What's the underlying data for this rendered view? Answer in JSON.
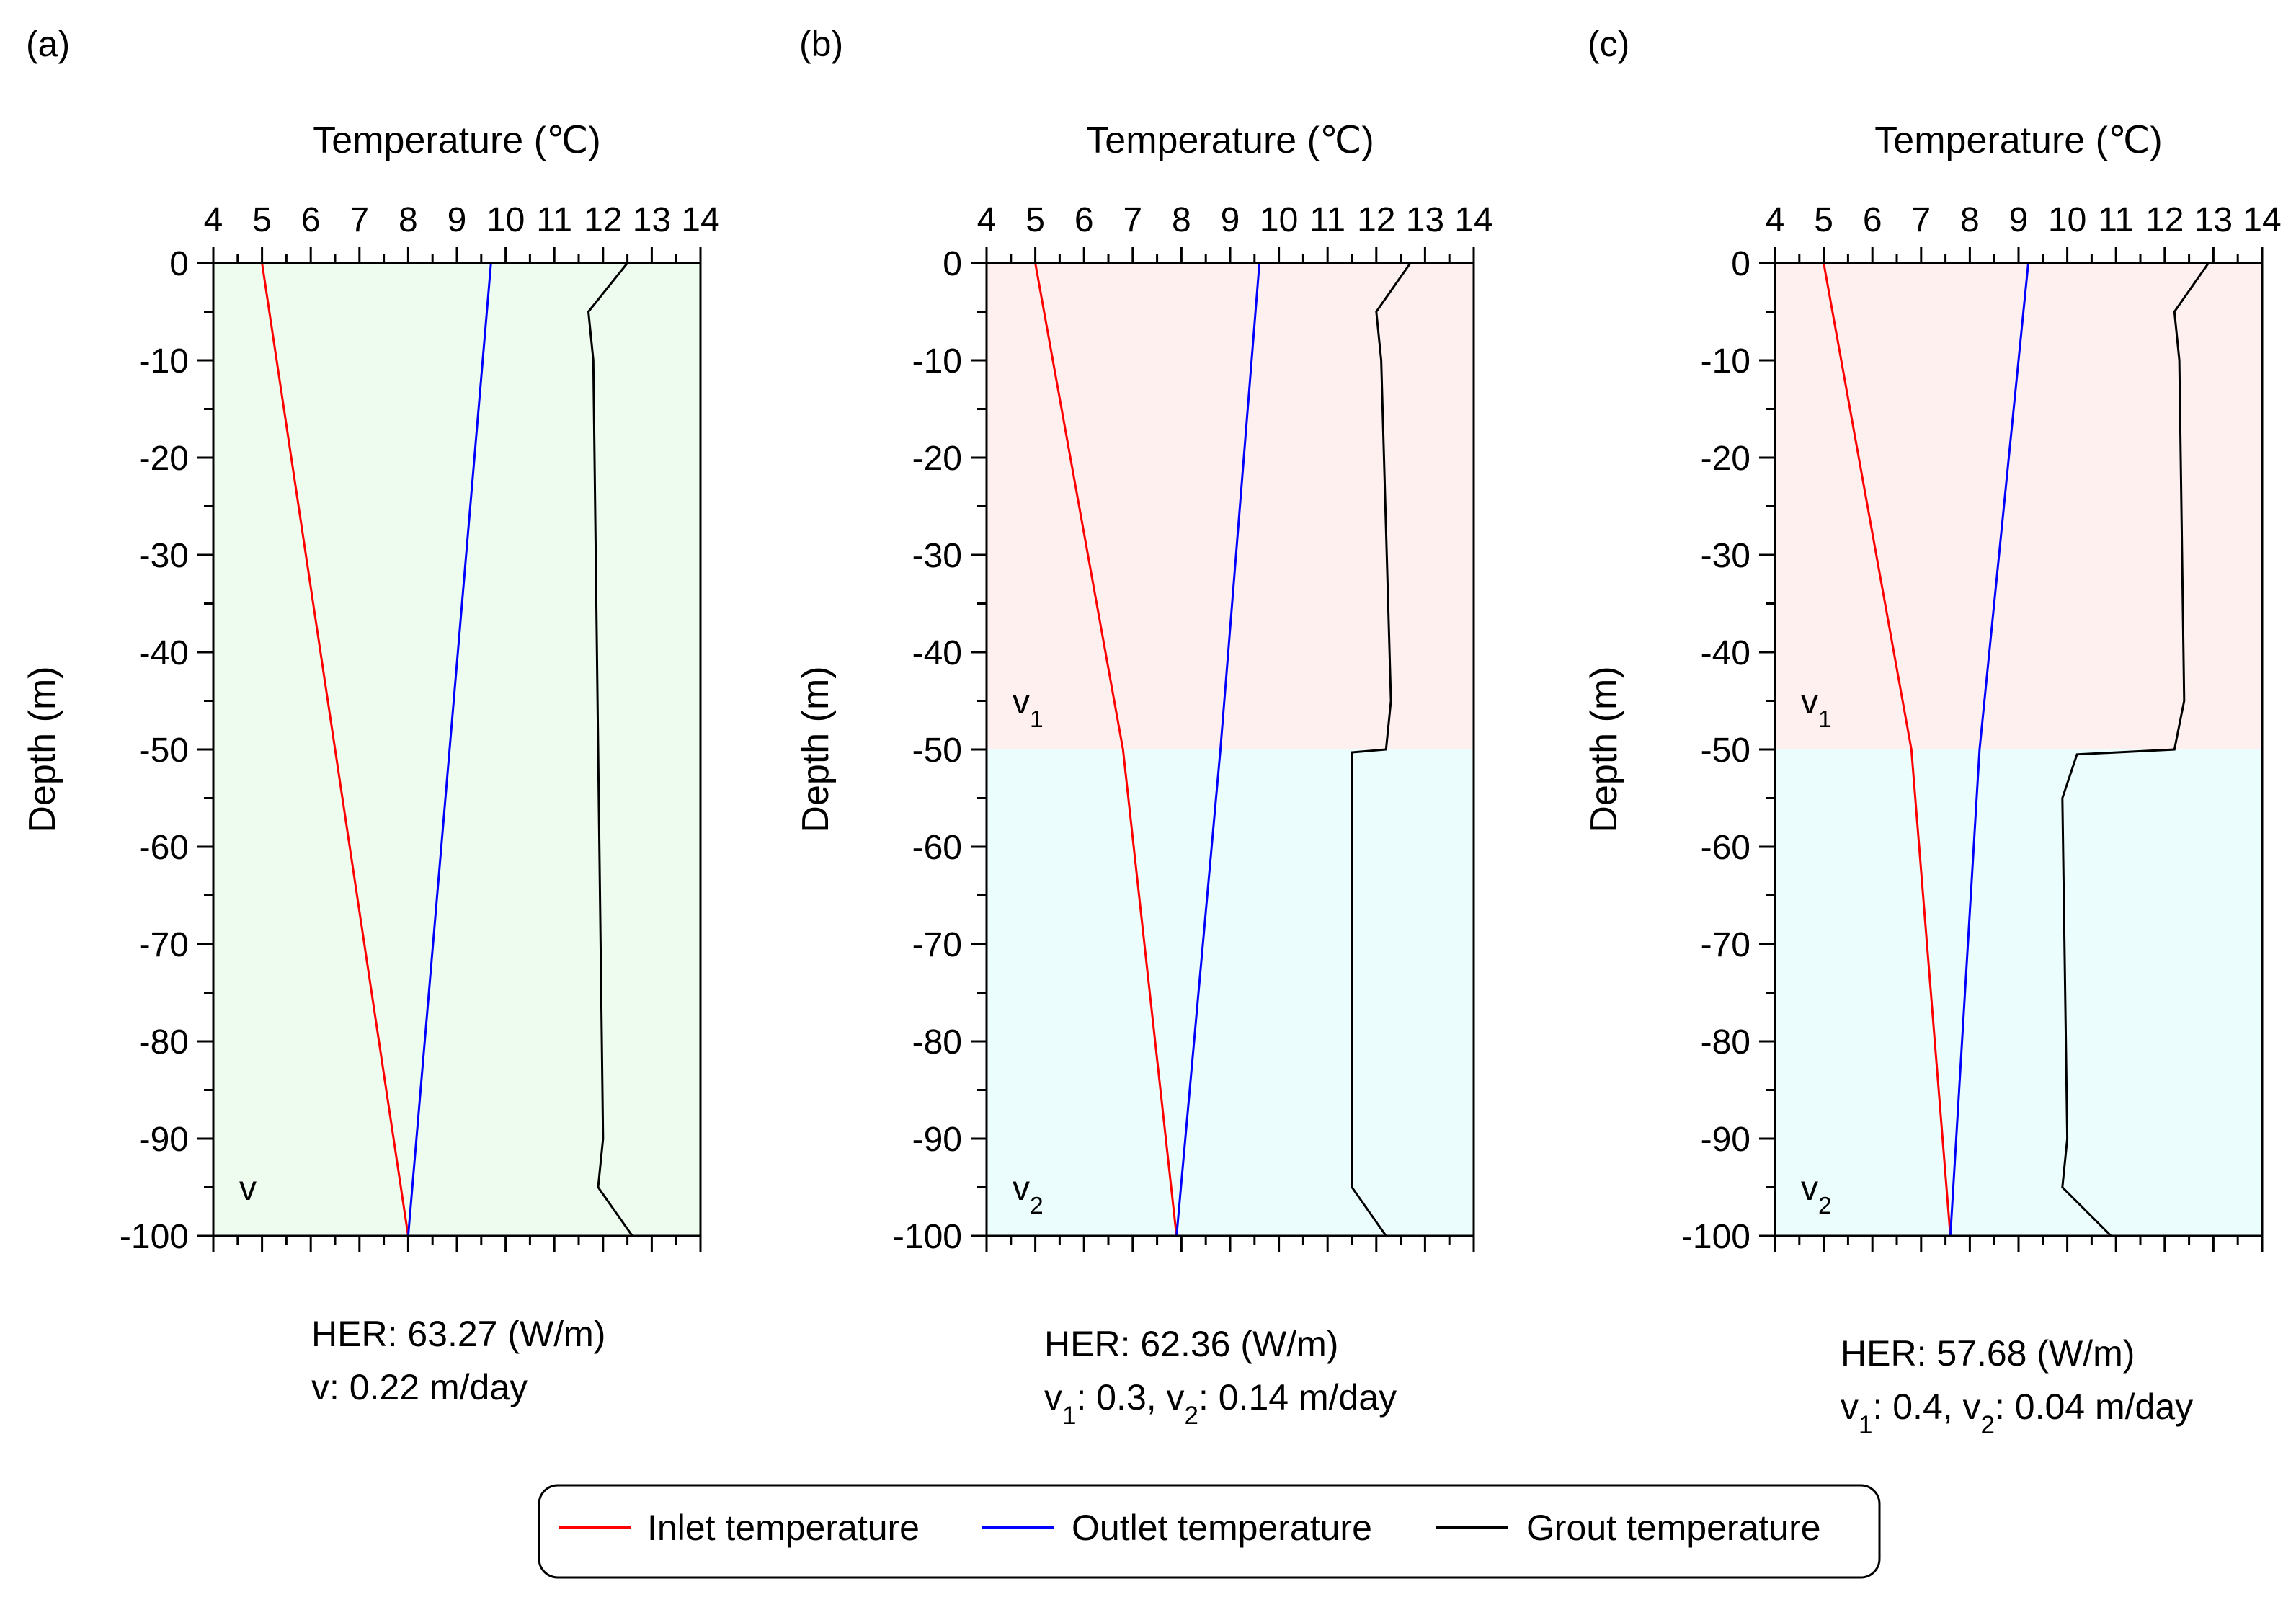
{
  "chart_data": [
    {
      "type": "line",
      "panel_label": "(a)",
      "xlabel": "Temperature (℃)",
      "ylabel": "Depth (m)",
      "xlim": [
        4,
        14
      ],
      "ylim": [
        -100,
        0
      ],
      "xticks": [
        4,
        5,
        6,
        7,
        8,
        9,
        10,
        11,
        12,
        13,
        14
      ],
      "yticks": [
        0,
        -10,
        -20,
        -30,
        -40,
        -50,
        -60,
        -70,
        -80,
        -90,
        -100
      ],
      "regions": [
        {
          "label": "v",
          "sub": "",
          "from": 0,
          "to": -100,
          "color": "#eefcef"
        }
      ],
      "series": [
        {
          "name": "Inlet temperature",
          "color": "#ff0000",
          "points": [
            [
              5.0,
              0
            ],
            [
              8.0,
              -100
            ]
          ]
        },
        {
          "name": "Outlet temperature",
          "color": "#0000ff",
          "points": [
            [
              9.7,
              0
            ],
            [
              8.0,
              -100
            ]
          ]
        },
        {
          "name": "Grout temperature",
          "color": "#000000",
          "points": [
            [
              12.5,
              0
            ],
            [
              11.7,
              -5
            ],
            [
              11.8,
              -10
            ],
            [
              11.9,
              -50
            ],
            [
              12.0,
              -90
            ],
            [
              11.9,
              -95
            ],
            [
              12.6,
              -100
            ]
          ]
        }
      ],
      "caption": [
        {
          "parts": [
            {
              "t": "HER:  63.27 (W/m)"
            }
          ]
        },
        {
          "parts": [
            {
              "t": "v: 0.22 m/day"
            }
          ]
        }
      ]
    },
    {
      "type": "line",
      "panel_label": "(b)",
      "xlabel": "Temperature (℃)",
      "ylabel": "Depth (m)",
      "xlim": [
        4,
        14
      ],
      "ylim": [
        -100,
        0
      ],
      "xticks": [
        4,
        5,
        6,
        7,
        8,
        9,
        10,
        11,
        12,
        13,
        14
      ],
      "yticks": [
        0,
        -10,
        -20,
        -30,
        -40,
        -50,
        -60,
        -70,
        -80,
        -90,
        -100
      ],
      "regions": [
        {
          "label": "v",
          "sub": "1",
          "from": 0,
          "to": -50,
          "color": "#fdf0ef"
        },
        {
          "label": "v",
          "sub": "2",
          "from": -50,
          "to": -100,
          "color": "#ebfdfc"
        }
      ],
      "series": [
        {
          "name": "Inlet temperature",
          "color": "#ff0000",
          "points": [
            [
              5.0,
              0
            ],
            [
              6.8,
              -50
            ],
            [
              7.9,
              -100
            ]
          ]
        },
        {
          "name": "Outlet temperature",
          "color": "#0000ff",
          "points": [
            [
              9.6,
              0
            ],
            [
              8.8,
              -50
            ],
            [
              7.9,
              -100
            ]
          ]
        },
        {
          "name": "Grout temperature",
          "color": "#000000",
          "points": [
            [
              12.7,
              0
            ],
            [
              12.0,
              -5
            ],
            [
              12.1,
              -10
            ],
            [
              12.3,
              -45
            ],
            [
              12.2,
              -50
            ],
            [
              11.5,
              -50.3
            ],
            [
              11.5,
              -55
            ],
            [
              11.5,
              -90
            ],
            [
              11.5,
              -95
            ],
            [
              12.2,
              -100
            ]
          ]
        }
      ],
      "caption": [
        {
          "parts": [
            {
              "t": "HER:  62.36 (W/m)"
            }
          ]
        },
        {
          "parts": [
            {
              "t": "v"
            },
            {
              "t": "1",
              "sub": true
            },
            {
              "t": ": 0.3, v"
            },
            {
              "t": "2",
              "sub": true
            },
            {
              "t": ": 0.14 m/day"
            }
          ]
        }
      ]
    },
    {
      "type": "line",
      "panel_label": "(c)",
      "xlabel": "Temperature (℃)",
      "ylabel": "Depth (m)",
      "xlim": [
        4,
        14
      ],
      "ylim": [
        -100,
        0
      ],
      "xticks": [
        4,
        5,
        6,
        7,
        8,
        9,
        10,
        11,
        12,
        13,
        14
      ],
      "yticks": [
        0,
        -10,
        -20,
        -30,
        -40,
        -50,
        -60,
        -70,
        -80,
        -90,
        -100
      ],
      "regions": [
        {
          "label": "v",
          "sub": "1",
          "from": 0,
          "to": -50,
          "color": "#fdf0ef"
        },
        {
          "label": "v",
          "sub": "2",
          "from": -50,
          "to": -100,
          "color": "#ebfdfc"
        }
      ],
      "series": [
        {
          "name": "Inlet temperature",
          "color": "#ff0000",
          "points": [
            [
              5.0,
              0
            ],
            [
              6.8,
              -50
            ],
            [
              7.6,
              -100
            ]
          ]
        },
        {
          "name": "Outlet temperature",
          "color": "#0000ff",
          "points": [
            [
              9.2,
              0
            ],
            [
              8.2,
              -50
            ],
            [
              7.6,
              -100
            ]
          ]
        },
        {
          "name": "Grout temperature",
          "color": "#000000",
          "points": [
            [
              12.9,
              0
            ],
            [
              12.2,
              -5
            ],
            [
              12.3,
              -10
            ],
            [
              12.4,
              -45
            ],
            [
              12.2,
              -50
            ],
            [
              10.2,
              -50.5
            ],
            [
              9.9,
              -55
            ],
            [
              10.0,
              -90
            ],
            [
              9.9,
              -95
            ],
            [
              10.9,
              -100
            ]
          ]
        }
      ],
      "caption": [
        {
          "parts": [
            {
              "t": "HER:  57.68 (W/m)"
            }
          ]
        },
        {
          "parts": [
            {
              "t": "v"
            },
            {
              "t": "1",
              "sub": true
            },
            {
              "t": ": 0.4, v"
            },
            {
              "t": "2",
              "sub": true
            },
            {
              "t": ": 0.04 m/day"
            }
          ]
        }
      ]
    }
  ],
  "legend": [
    {
      "label": "Inlet temperature",
      "color": "#ff0000"
    },
    {
      "label": "Outlet temperature",
      "color": "#0000ff"
    },
    {
      "label": "Grout temperature",
      "color": "#000000"
    }
  ]
}
